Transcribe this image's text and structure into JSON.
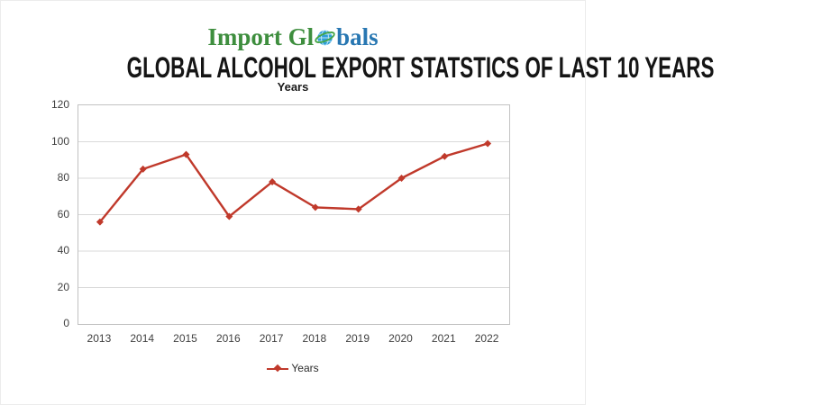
{
  "logo": {
    "text_before_globe": "Import Gl",
    "text_after_globe": "bals",
    "green": "#3e8e3e",
    "blue": "#2877b2",
    "globe_blue": "#2f9fd8",
    "globe_ring_green": "#46a546"
  },
  "heading": {
    "title": "GLOBAL ALCOHOL EXPORT STATSTICS OF LAST 10 YEARS"
  },
  "chart_data": {
    "type": "line",
    "title": "Years",
    "categories": [
      "2013",
      "2014",
      "2015",
      "2016",
      "2017",
      "2018",
      "2019",
      "2020",
      "2021",
      "2022"
    ],
    "series": [
      {
        "name": "Years",
        "color": "#c0392b",
        "marker": "diamond",
        "values": [
          56,
          85,
          93,
          59,
          78,
          64,
          63,
          80,
          92,
          99
        ]
      }
    ],
    "xlabel": "",
    "ylabel": "",
    "ylim": [
      0,
      120
    ],
    "yticks": [
      0,
      20,
      40,
      60,
      80,
      100,
      120
    ],
    "grid": true,
    "grid_color": "#d9d9d9",
    "plot_border_color": "#c2c2c2",
    "tick_color": "#404040",
    "legend_position": "bottom",
    "legend_label": "Years"
  }
}
